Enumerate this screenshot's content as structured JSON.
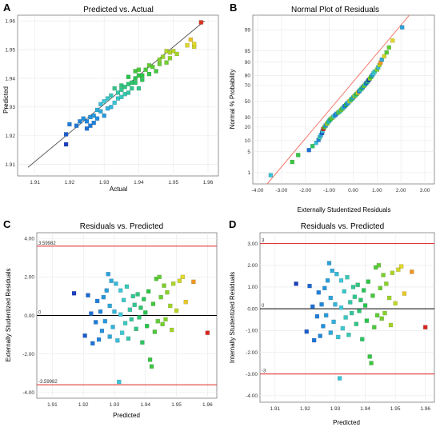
{
  "panels": [
    {
      "id": "A",
      "panel_label": "A",
      "title": "Predicted vs. Actual",
      "xlabel": "Actual",
      "ylabel": "Predicted",
      "xlim": [
        1.905,
        1.963
      ],
      "ylim": [
        1.906,
        1.962
      ],
      "xticks": [
        1.91,
        1.92,
        1.93,
        1.94,
        1.95,
        1.96
      ],
      "yticks": [
        1.91,
        1.92,
        1.93,
        1.94,
        1.95,
        1.96
      ],
      "xtick_labels": [
        "1.91",
        "1.92",
        "1.93",
        "1.94",
        "1.95",
        "1.96"
      ],
      "ytick_labels": [
        "1.91",
        "1.92",
        "1.93",
        "1.94",
        "1.95",
        "1.96"
      ]
    },
    {
      "id": "B",
      "panel_label": "B",
      "title": "Normal Plot of Residuals",
      "xlabel": "Externally Studentized Residuals",
      "ylabel": "Normal % Probability",
      "xlim": [
        -4.2,
        3.4
      ],
      "xticks": [
        -4,
        -3,
        -2,
        -1,
        0,
        1,
        2,
        3
      ],
      "xtick_labels": [
        "-4.00",
        "-3.00",
        "-2.00",
        "-1.00",
        "0.00",
        "1.00",
        "2.00",
        "3.00"
      ],
      "yticks": [
        1,
        5,
        10,
        20,
        30,
        50,
        70,
        80,
        90,
        95,
        99
      ],
      "ytick_labels": [
        "1",
        "5",
        "10",
        "20",
        "30",
        "50",
        "70",
        "80",
        "90",
        "95",
        "99"
      ],
      "yscale": "normal-probability"
    },
    {
      "id": "C",
      "panel_label": "C",
      "title": "Residuals vs. Predicted",
      "xlabel": "Predicted",
      "ylabel": "Externally Studentized Residuals",
      "xlim": [
        1.905,
        1.963
      ],
      "ylim": [
        -4.3,
        4.3
      ],
      "xticks": [
        1.91,
        1.92,
        1.93,
        1.94,
        1.95,
        1.96
      ],
      "xtick_labels": [
        "1.91",
        "1.92",
        "1.93",
        "1.94",
        "1.95",
        "1.96"
      ],
      "yticks": [
        -4,
        -2,
        0,
        2,
        4
      ],
      "ytick_labels": [
        "-4.00",
        "-2.00",
        "0.00",
        "2.00",
        "4.00"
      ],
      "reference_lines": [
        {
          "value": 3.59982,
          "label": "3.59982",
          "color": "#e03a3a"
        },
        {
          "value": 0,
          "label": "0",
          "color": "#000000"
        },
        {
          "value": -3.59982,
          "label": "-3.59982",
          "color": "#e03a3a"
        }
      ]
    },
    {
      "id": "D",
      "panel_label": "D",
      "title": "Residuals vs. Predicted",
      "xlabel": "Predicted",
      "ylabel": "Internally Studentized Residuals",
      "xlim": [
        1.905,
        1.963
      ],
      "ylim": [
        -4.3,
        3.5
      ],
      "xticks": [
        1.91,
        1.92,
        1.93,
        1.94,
        1.95,
        1.96
      ],
      "xtick_labels": [
        "1.91",
        "1.92",
        "1.93",
        "1.94",
        "1.95",
        "1.96"
      ],
      "yticks": [
        -4,
        -3,
        -2,
        -1,
        0,
        1,
        2,
        3
      ],
      "ytick_labels": [
        "-4.00",
        "-3.00",
        "-2.00",
        "-1.00",
        "0.00",
        "1.00",
        "2.00",
        "3.00"
      ],
      "reference_lines": [
        {
          "value": 3,
          "label": "3",
          "color": "#e03a3a"
        },
        {
          "value": 0,
          "label": "0",
          "color": "#000000"
        },
        {
          "value": -3,
          "label": "-3",
          "color": "#e03a3a"
        }
      ]
    }
  ],
  "chart_data": [
    {
      "type": "scatter",
      "panel": "A",
      "title": "Predicted vs. Actual",
      "xlabel": "Actual",
      "ylabel": "Predicted",
      "xlim": [
        1.905,
        1.963
      ],
      "ylim": [
        1.906,
        1.962
      ],
      "reference_line": "y = x",
      "points": [
        [
          1.919,
          1.9205
        ],
        [
          1.919,
          1.917
        ],
        [
          1.92,
          1.924
        ],
        [
          1.922,
          1.9235
        ],
        [
          1.923,
          1.925
        ],
        [
          1.924,
          1.926
        ],
        [
          1.925,
          1.925
        ],
        [
          1.925,
          1.9225
        ],
        [
          1.926,
          1.9265
        ],
        [
          1.926,
          1.9235
        ],
        [
          1.927,
          1.927
        ],
        [
          1.927,
          1.9245
        ],
        [
          1.928,
          1.926
        ],
        [
          1.928,
          1.929
        ],
        [
          1.929,
          1.931
        ],
        [
          1.929,
          1.9285
        ],
        [
          1.93,
          1.932
        ],
        [
          1.93,
          1.927
        ],
        [
          1.931,
          1.933
        ],
        [
          1.931,
          1.9295
        ],
        [
          1.932,
          1.93
        ],
        [
          1.932,
          1.934
        ],
        [
          1.933,
          1.9315
        ],
        [
          1.933,
          1.9365
        ],
        [
          1.934,
          1.933
        ],
        [
          1.934,
          1.935
        ],
        [
          1.935,
          1.936
        ],
        [
          1.935,
          1.9335
        ],
        [
          1.935,
          1.9375
        ],
        [
          1.936,
          1.937
        ],
        [
          1.936,
          1.9345
        ],
        [
          1.937,
          1.938
        ],
        [
          1.937,
          1.935
        ],
        [
          1.937,
          1.9405
        ],
        [
          1.938,
          1.9385
        ],
        [
          1.938,
          1.9365
        ],
        [
          1.939,
          1.9385
        ],
        [
          1.939,
          1.94
        ],
        [
          1.939,
          1.9425
        ],
        [
          1.94,
          1.941
        ],
        [
          1.94,
          1.9365
        ],
        [
          1.94,
          1.943
        ],
        [
          1.941,
          1.941
        ],
        [
          1.941,
          1.9395
        ],
        [
          1.942,
          1.943
        ],
        [
          1.943,
          1.9415
        ],
        [
          1.943,
          1.9445
        ],
        [
          1.944,
          1.944
        ],
        [
          1.945,
          1.9425
        ],
        [
          1.946,
          1.9465
        ],
        [
          1.946,
          1.945
        ],
        [
          1.947,
          1.9475
        ],
        [
          1.948,
          1.9455
        ],
        [
          1.948,
          1.9495
        ],
        [
          1.949,
          1.947
        ],
        [
          1.949,
          1.949
        ],
        [
          1.95,
          1.9495
        ],
        [
          1.951,
          1.9485
        ],
        [
          1.954,
          1.9515
        ],
        [
          1.955,
          1.9535
        ],
        [
          1.956,
          1.951
        ],
        [
          1.956,
          1.952
        ],
        [
          1.958,
          1.9595
        ]
      ]
    },
    {
      "type": "scatter",
      "panel": "B",
      "title": "Normal Plot of Residuals",
      "xlabel": "Externally Studentized Residuals",
      "ylabel": "Normal % Probability",
      "xlim": [
        -4.2,
        3.4
      ],
      "yscale": "normal-probability",
      "reference_line": "normal fit",
      "residuals_sorted": [
        -3.45,
        -2.55,
        -2.3,
        -1.85,
        -1.7,
        -1.55,
        -1.45,
        -1.4,
        -1.35,
        -1.3,
        -1.28,
        -1.25,
        -1.2,
        -1.15,
        -1.1,
        -1.05,
        -1.0,
        -0.95,
        -0.88,
        -0.82,
        -0.75,
        -0.7,
        -0.62,
        -0.55,
        -0.5,
        -0.45,
        -0.4,
        -0.35,
        -0.3,
        -0.25,
        -0.2,
        -0.15,
        -0.1,
        -0.05,
        0.0,
        0.05,
        0.1,
        0.15,
        0.2,
        0.25,
        0.3,
        0.35,
        0.4,
        0.45,
        0.5,
        0.55,
        0.6,
        0.65,
        0.7,
        0.75,
        0.8,
        0.85,
        0.9,
        1.0,
        1.05,
        1.1,
        1.15,
        1.2,
        1.3,
        1.4,
        1.5,
        1.65,
        2.05
      ]
    },
    {
      "type": "scatter",
      "panel": "C",
      "title": "Residuals vs. Predicted",
      "xlabel": "Predicted",
      "ylabel": "Externally Studentized Residuals",
      "xlim": [
        1.905,
        1.963
      ],
      "ylim": [
        -4.3,
        4.3
      ],
      "limits": [
        3.59982,
        0,
        -3.59982
      ],
      "points": [
        [
          1.917,
          1.15
        ],
        [
          1.9205,
          -1.05
        ],
        [
          1.9215,
          1.05
        ],
        [
          1.9225,
          0.1
        ],
        [
          1.923,
          -1.45
        ],
        [
          1.924,
          -0.35
        ],
        [
          1.9245,
          0.75
        ],
        [
          1.925,
          -1.25
        ],
        [
          1.9255,
          0.2
        ],
        [
          1.926,
          -0.8
        ],
        [
          1.9265,
          0.95
        ],
        [
          1.927,
          -0.3
        ],
        [
          1.9275,
          1.3
        ],
        [
          1.928,
          2.15
        ],
        [
          1.9285,
          -1.1
        ],
        [
          1.9285,
          0.5
        ],
        [
          1.929,
          1.8
        ],
        [
          1.9295,
          -0.6
        ],
        [
          1.93,
          0.2
        ],
        [
          1.9305,
          1.65
        ],
        [
          1.931,
          -1.3
        ],
        [
          1.9315,
          -3.45
        ],
        [
          1.932,
          0.05
        ],
        [
          1.932,
          1.3
        ],
        [
          1.9325,
          -0.9
        ],
        [
          1.933,
          0.8
        ],
        [
          1.9335,
          -0.4
        ],
        [
          1.934,
          1.5
        ],
        [
          1.9345,
          -1.2
        ],
        [
          1.935,
          0.3
        ],
        [
          1.9355,
          -0.2
        ],
        [
          1.936,
          1.0
        ],
        [
          1.9365,
          0.55
        ],
        [
          1.937,
          -0.7
        ],
        [
          1.9375,
          1.1
        ],
        [
          1.938,
          -0.1
        ],
        [
          1.9385,
          0.4
        ],
        [
          1.939,
          -1.4
        ],
        [
          1.9395,
          0.85
        ],
        [
          1.94,
          0.15
        ],
        [
          1.9405,
          -0.55
        ],
        [
          1.941,
          1.25
        ],
        [
          1.9415,
          -2.3
        ],
        [
          1.942,
          -2.65
        ],
        [
          1.9425,
          0.6
        ],
        [
          1.943,
          -0.85
        ],
        [
          1.9435,
          1.9
        ],
        [
          1.944,
          -0.3
        ],
        [
          1.9445,
          2.0
        ],
        [
          1.945,
          0.95
        ],
        [
          1.9455,
          -0.45
        ],
        [
          1.946,
          1.55
        ],
        [
          1.9465,
          -0.2
        ],
        [
          1.947,
          1.2
        ],
        [
          1.948,
          0.5
        ],
        [
          1.9485,
          -0.75
        ],
        [
          1.949,
          1.65
        ],
        [
          1.95,
          0.25
        ],
        [
          1.951,
          1.8
        ],
        [
          1.952,
          2.0
        ],
        [
          1.953,
          0.7
        ],
        [
          1.9555,
          1.75
        ],
        [
          1.96,
          -0.9
        ]
      ]
    },
    {
      "type": "scatter",
      "panel": "D",
      "title": "Residuals vs. Predicted",
      "xlabel": "Predicted",
      "ylabel": "Internally Studentized Residuals",
      "xlim": [
        1.905,
        1.963
      ],
      "ylim": [
        -4.3,
        3.5
      ],
      "limits": [
        3,
        0,
        -3
      ],
      "points": [
        [
          1.917,
          1.15
        ],
        [
          1.9205,
          -1.05
        ],
        [
          1.9215,
          1.05
        ],
        [
          1.9225,
          0.1
        ],
        [
          1.923,
          -1.45
        ],
        [
          1.924,
          -0.35
        ],
        [
          1.9245,
          0.75
        ],
        [
          1.925,
          -1.25
        ],
        [
          1.9255,
          0.2
        ],
        [
          1.926,
          -0.8
        ],
        [
          1.9265,
          0.95
        ],
        [
          1.927,
          -0.3
        ],
        [
          1.9275,
          1.3
        ],
        [
          1.928,
          2.1
        ],
        [
          1.9285,
          -1.1
        ],
        [
          1.9285,
          0.5
        ],
        [
          1.929,
          1.75
        ],
        [
          1.9295,
          -0.6
        ],
        [
          1.93,
          0.2
        ],
        [
          1.9305,
          1.6
        ],
        [
          1.931,
          -1.3
        ],
        [
          1.9315,
          -3.2
        ],
        [
          1.932,
          0.05
        ],
        [
          1.932,
          1.3
        ],
        [
          1.9325,
          -0.9
        ],
        [
          1.933,
          0.8
        ],
        [
          1.9335,
          -0.4
        ],
        [
          1.934,
          1.45
        ],
        [
          1.9345,
          -1.2
        ],
        [
          1.935,
          0.3
        ],
        [
          1.9355,
          -0.2
        ],
        [
          1.936,
          1.0
        ],
        [
          1.9365,
          0.55
        ],
        [
          1.937,
          -0.7
        ],
        [
          1.9375,
          1.1
        ],
        [
          1.938,
          -0.1
        ],
        [
          1.9385,
          0.4
        ],
        [
          1.939,
          -1.4
        ],
        [
          1.9395,
          0.85
        ],
        [
          1.94,
          0.15
        ],
        [
          1.9405,
          -0.55
        ],
        [
          1.941,
          1.25
        ],
        [
          1.9415,
          -2.2
        ],
        [
          1.942,
          -2.5
        ],
        [
          1.9425,
          0.6
        ],
        [
          1.943,
          -0.85
        ],
        [
          1.9435,
          1.9
        ],
        [
          1.944,
          -0.3
        ],
        [
          1.9445,
          2.0
        ],
        [
          1.945,
          0.95
        ],
        [
          1.9455,
          -0.45
        ],
        [
          1.946,
          1.55
        ],
        [
          1.9465,
          -0.2
        ],
        [
          1.947,
          1.15
        ],
        [
          1.948,
          0.5
        ],
        [
          1.9485,
          -0.75
        ],
        [
          1.949,
          1.65
        ],
        [
          1.95,
          0.25
        ],
        [
          1.951,
          1.8
        ],
        [
          1.952,
          1.95
        ],
        [
          1.953,
          0.7
        ],
        [
          1.9555,
          1.7
        ],
        [
          1.96,
          -0.85
        ]
      ]
    }
  ],
  "colors": {
    "ref_red": "#e03a3a",
    "normal_line": "#f27a6e",
    "grid": "#e8e8e8",
    "frame": "#7a7a7a",
    "low": "#1a3fbf",
    "high": "#d7261e"
  }
}
